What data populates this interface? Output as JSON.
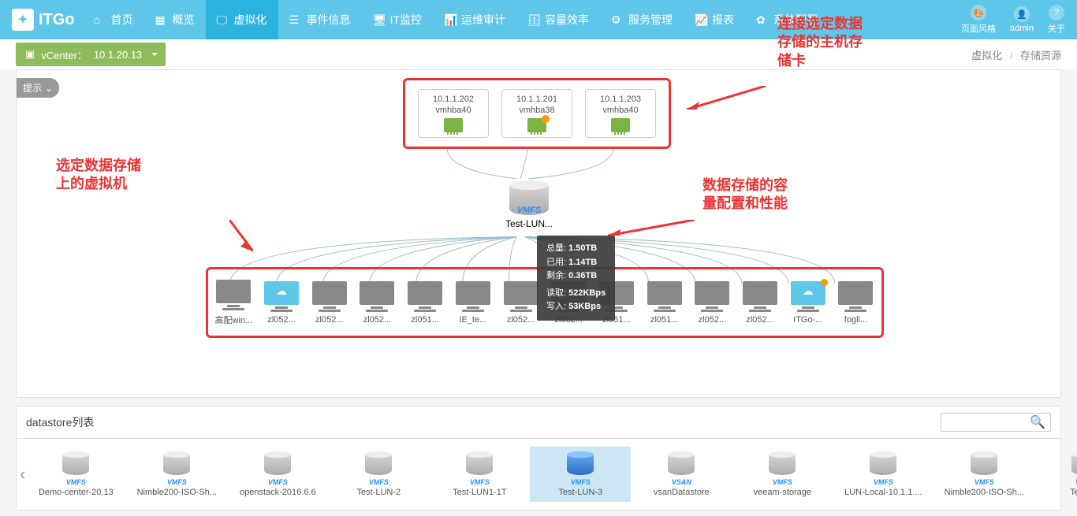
{
  "brand": "ITGo",
  "nav": [
    {
      "icon": "home",
      "label": "首页"
    },
    {
      "icon": "grid",
      "label": "概览"
    },
    {
      "icon": "screen",
      "label": "虚拟化",
      "active": true
    },
    {
      "icon": "list",
      "label": "事件信息"
    },
    {
      "icon": "monitor",
      "label": "IT监控"
    },
    {
      "icon": "audit",
      "label": "运维审计"
    },
    {
      "icon": "capacity",
      "label": "容量效率"
    },
    {
      "icon": "service",
      "label": "服务管理"
    },
    {
      "icon": "report",
      "label": "报表"
    },
    {
      "icon": "config",
      "label": "系统配置"
    }
  ],
  "top_right": [
    {
      "icon": "style",
      "label": "页面风格"
    },
    {
      "icon": "user",
      "label": "admin"
    },
    {
      "icon": "help",
      "label": "关于"
    }
  ],
  "vcenter": {
    "label": "vCenter：",
    "value": "10.1.20.13"
  },
  "breadcrumb": {
    "a": "虚拟化",
    "b": "存储资源"
  },
  "hint": "提示",
  "hosts": [
    {
      "ip": "10.1.1.202",
      "hba": "vmhba40",
      "warn": false
    },
    {
      "ip": "10.1.1.201",
      "hba": "vmhba38",
      "warn": true
    },
    {
      "ip": "10.1.1.203",
      "hba": "vmhba40",
      "warn": false
    }
  ],
  "datastore_center": {
    "type": "VMFS",
    "name": "Test-LUN..."
  },
  "tooltip": {
    "total_label": "总量:",
    "total": "1.50TB",
    "used_label": "已用:",
    "used": "1.14TB",
    "free_label": "剩余:",
    "free": "0.36TB",
    "read_label": "读取:",
    "read": "522KBps",
    "write_label": "写入:",
    "write": "53KBps"
  },
  "vms": [
    {
      "label": "高配win...",
      "cloud": false,
      "warn": false
    },
    {
      "label": "zl052...",
      "cloud": true,
      "warn": false
    },
    {
      "label": "zl052...",
      "cloud": false,
      "warn": false
    },
    {
      "label": "zl052...",
      "cloud": false,
      "warn": false
    },
    {
      "label": "zl051...",
      "cloud": false,
      "warn": false
    },
    {
      "label": "IE_te...",
      "cloud": false,
      "warn": false
    },
    {
      "label": "zl052...",
      "cloud": false,
      "warn": false
    },
    {
      "label": "zl052...",
      "cloud": false,
      "warn": false
    },
    {
      "label": "zl051...",
      "cloud": false,
      "warn": false
    },
    {
      "label": "zl051...",
      "cloud": false,
      "warn": false
    },
    {
      "label": "zl052...",
      "cloud": false,
      "warn": false
    },
    {
      "label": "zl052...",
      "cloud": false,
      "warn": false
    },
    {
      "label": "ITGo-...",
      "cloud": true,
      "warn": true
    },
    {
      "label": "fogli...",
      "cloud": false,
      "warn": false
    }
  ],
  "annotations": {
    "left": "选定数据存储\n上的虚拟机",
    "right_top": "连接选定数据\n存储的主机存\n储卡",
    "right_mid": "数据存储的容\n量配置和性能"
  },
  "dslist": {
    "title": "datastore列表",
    "items": [
      {
        "label": "Demo-center-20.13",
        "type": "VMFS"
      },
      {
        "label": "Nimble200-ISO-Sh...",
        "type": "VMFS"
      },
      {
        "label": "openstack-2016.6.6",
        "type": "VMFS"
      },
      {
        "label": "Test-LUN-2",
        "type": "VMFS"
      },
      {
        "label": "Test-LUN1-1T",
        "type": "VMFS"
      },
      {
        "label": "Test-LUN-3",
        "type": "VMFS",
        "selected": true,
        "blue": true
      },
      {
        "label": "vsanDatastore",
        "type": "VSAN"
      },
      {
        "label": "veeam-storage",
        "type": "VMFS"
      },
      {
        "label": "LUN-Local-10.1.1....",
        "type": "VMFS"
      },
      {
        "label": "Nimble200-ISO-Sh...",
        "type": "VMFS"
      },
      {
        "label": "Test-LU",
        "type": "VMFS"
      }
    ]
  },
  "colors": {
    "accent": "#5ec6e8",
    "annot": "#e33",
    "green": "#8fbc5a"
  }
}
